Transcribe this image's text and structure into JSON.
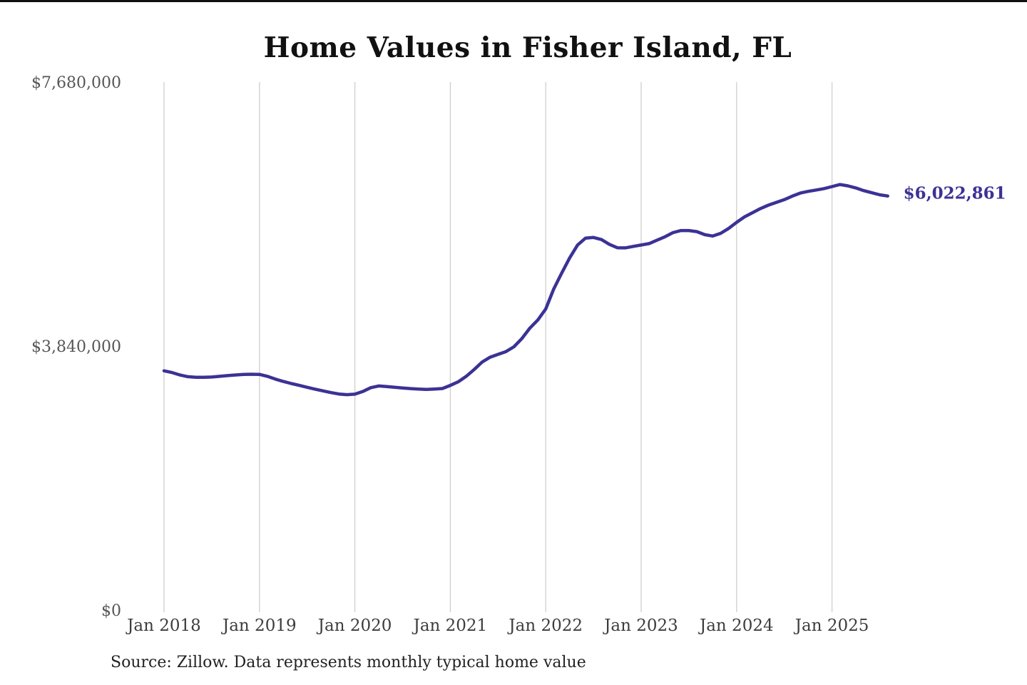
{
  "page": {
    "title": "Home Values in Fisher Island, FL",
    "source_note": "Source: Zillow. Data represents monthly typical home value"
  },
  "chart_data": {
    "type": "line",
    "title": "Home Values in Fisher Island, FL",
    "source": "Source: Zillow. Data represents monthly typical home value",
    "ylabel": "",
    "xlabel": "",
    "ylim": [
      0,
      7680000
    ],
    "grid": "vertical-only",
    "grid_color": "#cccccc",
    "end_label": "$6,022,861",
    "end_value": 6022861,
    "x_tick_labels": [
      "Jan 2018",
      "Jan 2019",
      "Jan 2020",
      "Jan 2021",
      "Jan 2022",
      "Jan 2023",
      "Jan 2024",
      "Jan 2025"
    ],
    "y_ticks": [
      {
        "label": "$0",
        "value": 0
      },
      {
        "label": "$3,840,000",
        "value": 3840000
      },
      {
        "label": "$7,680,000",
        "value": 7680000
      }
    ],
    "series": [
      {
        "name": "Monthly typical home value",
        "color": "#3b3295",
        "x": [
          "Jan 2018",
          "Feb 2018",
          "Mar 2018",
          "Apr 2018",
          "May 2018",
          "Jun 2018",
          "Jul 2018",
          "Aug 2018",
          "Sep 2018",
          "Oct 2018",
          "Nov 2018",
          "Dec 2018",
          "Jan 2019",
          "Feb 2019",
          "Mar 2019",
          "Apr 2019",
          "May 2019",
          "Jun 2019",
          "Jul 2019",
          "Aug 2019",
          "Sep 2019",
          "Oct 2019",
          "Nov 2019",
          "Dec 2019",
          "Jan 2020",
          "Feb 2020",
          "Mar 2020",
          "Apr 2020",
          "May 2020",
          "Jun 2020",
          "Jul 2020",
          "Aug 2020",
          "Sep 2020",
          "Oct 2020",
          "Nov 2020",
          "Dec 2020",
          "Jan 2021",
          "Feb 2021",
          "Mar 2021",
          "Apr 2021",
          "May 2021",
          "Jun 2021",
          "Jul 2021",
          "Aug 2021",
          "Sep 2021",
          "Oct 2021",
          "Nov 2021",
          "Dec 2021",
          "Jan 2022",
          "Feb 2022",
          "Mar 2022",
          "Apr 2022",
          "May 2022",
          "Jun 2022",
          "Jul 2022",
          "Aug 2022",
          "Sep 2022",
          "Oct 2022",
          "Nov 2022",
          "Dec 2022",
          "Jan 2023",
          "Feb 2023",
          "Mar 2023",
          "Apr 2023",
          "May 2023",
          "Jun 2023",
          "Jul 2023",
          "Aug 2023",
          "Sep 2023",
          "Oct 2023",
          "Nov 2023",
          "Dec 2023",
          "Jan 2024",
          "Feb 2024",
          "Mar 2024",
          "Apr 2024",
          "May 2024",
          "Jun 2024",
          "Jul 2024",
          "Aug 2024",
          "Sep 2024",
          "Oct 2024",
          "Nov 2024",
          "Dec 2024",
          "Jan 2025",
          "Feb 2025",
          "Mar 2025",
          "Apr 2025",
          "May 2025",
          "Jun 2025",
          "Jul 2025",
          "Aug 2025"
        ],
        "values": [
          3480000,
          3455000,
          3420000,
          3395000,
          3385000,
          3385000,
          3390000,
          3400000,
          3410000,
          3420000,
          3428000,
          3430000,
          3428000,
          3400000,
          3360000,
          3325000,
          3295000,
          3268000,
          3240000,
          3213000,
          3188000,
          3163000,
          3143000,
          3133000,
          3140000,
          3180000,
          3235000,
          3260000,
          3252000,
          3240000,
          3230000,
          3221000,
          3214000,
          3210000,
          3215000,
          3222000,
          3268000,
          3320000,
          3400000,
          3500000,
          3608000,
          3678000,
          3720000,
          3760000,
          3830000,
          3950000,
          4100000,
          4220000,
          4380000,
          4670000,
          4900000,
          5120000,
          5310000,
          5410000,
          5420000,
          5390000,
          5320000,
          5270000,
          5268000,
          5290000,
          5310000,
          5330000,
          5380000,
          5430000,
          5490000,
          5520000,
          5520000,
          5505000,
          5460000,
          5440000,
          5480000,
          5550000,
          5640000,
          5720000,
          5780000,
          5840000,
          5890000,
          5930000,
          5970000,
          6020000,
          6065000,
          6090000,
          6110000,
          6130000,
          6160000,
          6190000,
          6170000,
          6140000,
          6100000,
          6070000,
          6040000,
          6022861
        ]
      }
    ]
  }
}
